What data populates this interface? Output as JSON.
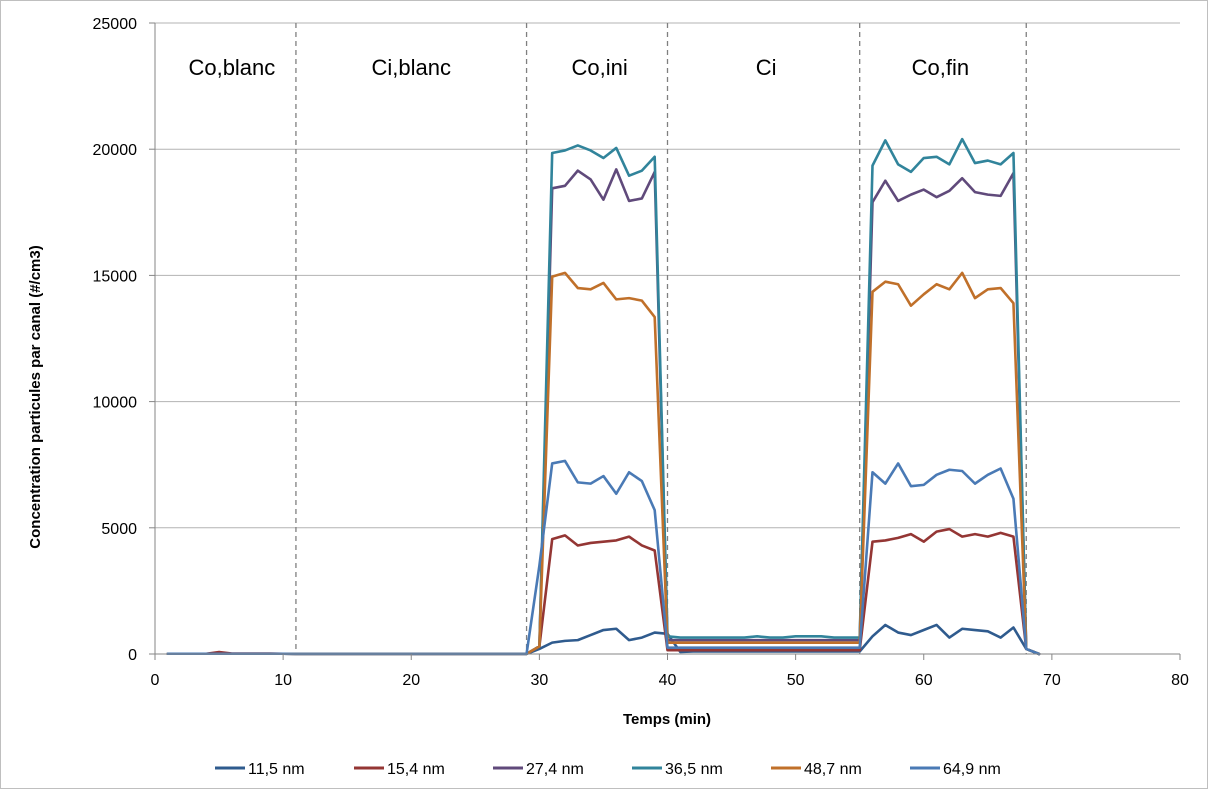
{
  "chart_data": {
    "type": "line",
    "xlabel": "Temps (min)",
    "ylabel": "Concentration particules par canal (#/cm3)",
    "xlim": [
      0,
      80
    ],
    "ylim": [
      0,
      25000
    ],
    "xticks": [
      0,
      10,
      20,
      30,
      40,
      50,
      60,
      70,
      80
    ],
    "yticks": [
      0,
      5000,
      10000,
      15000,
      20000,
      25000
    ],
    "grid": "horizontal",
    "legend_position": "bottom",
    "phases": [
      {
        "label": "Co,blanc",
        "x_center": 6
      },
      {
        "label": "Ci,blanc",
        "x_center": 20
      },
      {
        "label": "Co,ini",
        "x_center": 34.7
      },
      {
        "label": "Ci",
        "x_center": 47.7
      },
      {
        "label": "Co,fin",
        "x_center": 61.3
      }
    ],
    "phase_boundaries": [
      11,
      29,
      40,
      55,
      68
    ],
    "x": [
      1,
      2,
      3,
      4,
      5,
      6,
      7,
      8,
      9,
      10,
      11,
      12,
      13,
      14,
      15,
      16,
      17,
      18,
      19,
      20,
      21,
      22,
      23,
      24,
      25,
      26,
      27,
      28,
      29,
      30,
      31,
      32,
      33,
      34,
      35,
      36,
      37,
      38,
      39,
      40,
      41,
      42,
      43,
      44,
      45,
      46,
      47,
      48,
      49,
      50,
      51,
      52,
      53,
      54,
      55,
      56,
      57,
      58,
      59,
      60,
      61,
      62,
      63,
      64,
      65,
      66,
      67,
      68,
      69
    ],
    "series": [
      {
        "name": "11,5 nm",
        "color": "#2f5b8e",
        "values": [
          10,
          10,
          10,
          10,
          20,
          10,
          10,
          10,
          10,
          10,
          5,
          5,
          5,
          5,
          5,
          5,
          5,
          5,
          5,
          5,
          5,
          5,
          5,
          5,
          5,
          5,
          5,
          5,
          5,
          200,
          450,
          520,
          550,
          750,
          950,
          1000,
          550,
          650,
          850,
          800,
          80,
          100,
          100,
          100,
          100,
          100,
          100,
          100,
          100,
          100,
          100,
          100,
          100,
          100,
          100,
          700,
          1150,
          850,
          750,
          950,
          1150,
          650,
          1000,
          950,
          900,
          650,
          1050,
          200,
          0
        ]
      },
      {
        "name": "15,4 nm",
        "color": "#943634",
        "values": [
          10,
          10,
          10,
          10,
          80,
          20,
          20,
          20,
          20,
          10,
          5,
          5,
          5,
          5,
          5,
          5,
          5,
          5,
          5,
          5,
          5,
          5,
          5,
          5,
          5,
          5,
          5,
          5,
          5,
          300,
          4550,
          4700,
          4300,
          4400,
          4450,
          4500,
          4650,
          4300,
          4100,
          150,
          150,
          150,
          150,
          150,
          150,
          150,
          150,
          150,
          150,
          150,
          150,
          150,
          150,
          150,
          150,
          4450,
          4500,
          4600,
          4750,
          4450,
          4850,
          4950,
          4650,
          4750,
          4650,
          4800,
          4650,
          200,
          0
        ]
      },
      {
        "name": "27,4 nm",
        "color": "#604a7b",
        "values": [
          10,
          10,
          10,
          10,
          10,
          10,
          10,
          10,
          10,
          10,
          5,
          5,
          5,
          5,
          5,
          5,
          5,
          5,
          5,
          5,
          5,
          5,
          5,
          5,
          5,
          5,
          5,
          5,
          5,
          300,
          18450,
          18550,
          19150,
          18800,
          18000,
          19200,
          17950,
          18050,
          19100,
          550,
          550,
          550,
          550,
          550,
          550,
          550,
          550,
          550,
          550,
          550,
          550,
          550,
          550,
          550,
          550,
          17900,
          18750,
          17950,
          18200,
          18400,
          18100,
          18350,
          18850,
          18300,
          18200,
          18150,
          19050,
          200,
          0
        ]
      },
      {
        "name": "36,5 nm",
        "color": "#31849b",
        "values": [
          10,
          10,
          10,
          10,
          10,
          10,
          10,
          10,
          10,
          10,
          5,
          5,
          5,
          5,
          5,
          5,
          5,
          5,
          5,
          5,
          5,
          5,
          5,
          5,
          5,
          5,
          5,
          5,
          5,
          300,
          19850,
          19950,
          20150,
          19950,
          19650,
          20050,
          18950,
          19150,
          19700,
          700,
          650,
          650,
          650,
          650,
          650,
          650,
          700,
          650,
          650,
          700,
          700,
          700,
          650,
          650,
          650,
          19350,
          20350,
          19400,
          19100,
          19650,
          19700,
          19400,
          20400,
          19450,
          19550,
          19400,
          19850,
          200,
          0
        ]
      },
      {
        "name": "48,7 nm",
        "color": "#c0702a",
        "values": [
          10,
          10,
          10,
          10,
          10,
          10,
          10,
          10,
          10,
          10,
          5,
          5,
          5,
          5,
          5,
          5,
          5,
          5,
          5,
          5,
          5,
          5,
          5,
          5,
          5,
          5,
          5,
          5,
          5,
          300,
          14950,
          15100,
          14500,
          14450,
          14700,
          14050,
          14100,
          14000,
          13350,
          450,
          450,
          450,
          450,
          450,
          450,
          450,
          450,
          450,
          450,
          450,
          450,
          450,
          450,
          450,
          450,
          14350,
          14750,
          14650,
          13800,
          14250,
          14650,
          14450,
          15100,
          14100,
          14450,
          14500,
          13900,
          200,
          0
        ]
      },
      {
        "name": "64,9 nm",
        "color": "#4a7ab5",
        "values": [
          10,
          10,
          10,
          10,
          10,
          10,
          10,
          10,
          10,
          10,
          5,
          5,
          5,
          5,
          5,
          5,
          5,
          5,
          5,
          5,
          5,
          5,
          5,
          5,
          5,
          5,
          5,
          5,
          5,
          3500,
          7550,
          7650,
          6800,
          6750,
          7050,
          6350,
          7200,
          6850,
          5700,
          250,
          250,
          250,
          250,
          250,
          250,
          250,
          250,
          250,
          250,
          250,
          250,
          250,
          250,
          250,
          250,
          7200,
          6750,
          7550,
          6650,
          6700,
          7100,
          7300,
          7250,
          6750,
          7100,
          7350,
          6150,
          200,
          0
        ]
      }
    ]
  }
}
